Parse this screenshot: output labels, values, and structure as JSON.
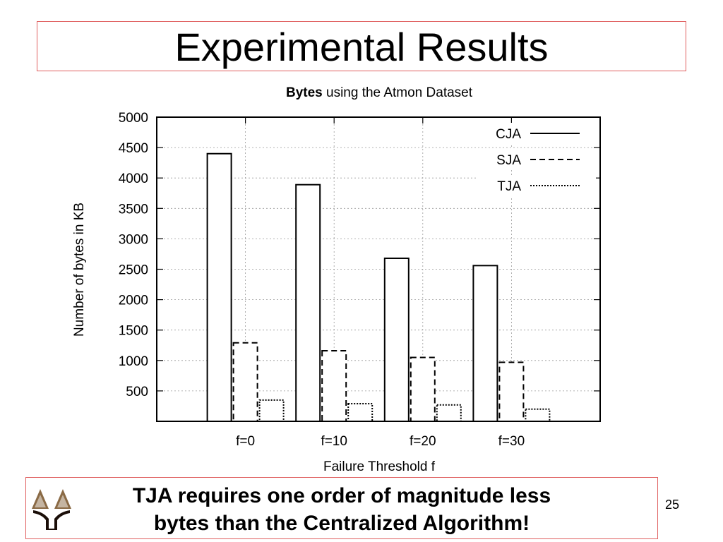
{
  "slide": {
    "title": "Experimental Results",
    "caption_line1": "TJA requires one order of magnitude less",
    "caption_line2": "bytes than the Centralized Algorithm!",
    "page_number": "25"
  },
  "chart_data": {
    "type": "bar",
    "title_bold": "Bytes",
    "title_rest": " using the Atmon Dataset",
    "xlabel": "Failure Threshold f",
    "ylabel": "Number of bytes in KB",
    "categories": [
      "f=0",
      "f=10",
      "f=20",
      "f=30"
    ],
    "ylim": [
      0,
      5000
    ],
    "yticks": [
      500,
      1000,
      1500,
      2000,
      2500,
      3000,
      3500,
      4000,
      4500,
      5000
    ],
    "grid": true,
    "legend_position": "top-right",
    "series": [
      {
        "name": "CJA",
        "line_style": "solid",
        "values": [
          4400,
          3890,
          2680,
          2560
        ]
      },
      {
        "name": "SJA",
        "line_style": "dashed",
        "values": [
          1290,
          1160,
          1050,
          970
        ]
      },
      {
        "name": "TJA",
        "line_style": "dotted",
        "values": [
          350,
          290,
          270,
          200
        ]
      }
    ]
  }
}
